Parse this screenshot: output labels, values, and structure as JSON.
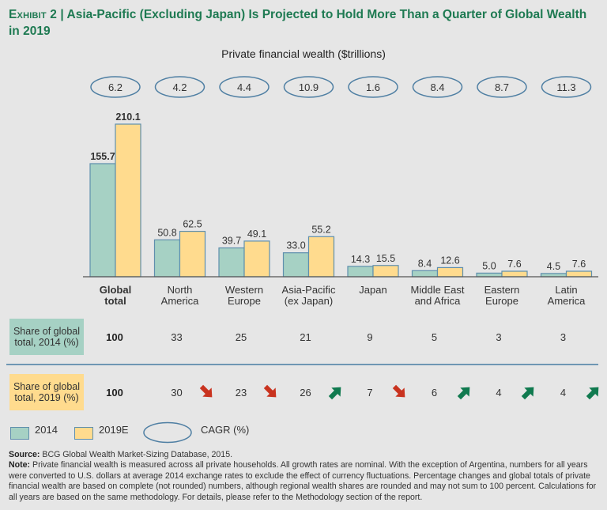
{
  "header": {
    "exhibit": "Exhibit 2",
    "separator": " | ",
    "title": "Asia-Pacific (Excluding Japan) Is Projected to Hold More Than a Quarter of Global Wealth in 2019"
  },
  "chart_data": {
    "type": "bar",
    "title": "Private financial wealth ($trillions)",
    "xlabel": "",
    "ylabel": "",
    "ylim": [
      0,
      210.1
    ],
    "grid": false,
    "categories": [
      "Global total",
      "North America",
      "Western Europe",
      "Asia-Pacific (ex Japan)",
      "Japan",
      "Middle East and Africa",
      "Eastern Europe",
      "Latin America"
    ],
    "category_lines": [
      [
        "Global",
        "total"
      ],
      [
        "North",
        "America"
      ],
      [
        "Western",
        "Europe"
      ],
      [
        "Asia-Pacific",
        "(ex Japan)"
      ],
      [
        "Japan"
      ],
      [
        "Middle East",
        "and Africa"
      ],
      [
        "Eastern",
        "Europe"
      ],
      [
        "Latin",
        "America"
      ]
    ],
    "series": [
      {
        "name": "2014",
        "color": "#a6d1c4",
        "values": [
          155.7,
          50.8,
          39.7,
          33.0,
          14.3,
          8.4,
          5.0,
          4.5
        ],
        "labels": [
          "155.7",
          "50.8",
          "39.7",
          "33.0",
          "14.3",
          "8.4",
          "5.0",
          "4.5"
        ]
      },
      {
        "name": "2019E",
        "color": "#ffdb8e",
        "values": [
          210.1,
          62.5,
          49.1,
          55.2,
          15.5,
          12.6,
          7.6,
          7.6
        ],
        "labels": [
          "210.1",
          "62.5",
          "49.1",
          "55.2",
          "15.5",
          "12.6",
          "7.6",
          "7.6"
        ]
      }
    ],
    "cagr": {
      "label": "CAGR (%)",
      "values": [
        "6.2",
        "4.2",
        "4.4",
        "10.9",
        "1.6",
        "8.4",
        "8.7",
        "11.3"
      ]
    },
    "share_2014": {
      "label": "Share of global total, 2014 (%)",
      "values": [
        "100",
        "33",
        "25",
        "21",
        "9",
        "5",
        "3",
        "3"
      ]
    },
    "share_2019": {
      "label": "Share of global total, 2019 (%)",
      "values": [
        "100",
        "30",
        "23",
        "26",
        "7",
        "6",
        "4",
        "4"
      ],
      "trend": [
        "none",
        "down",
        "down",
        "up",
        "down",
        "up",
        "up",
        "up"
      ]
    },
    "legend": [
      {
        "label": "2014",
        "color": "#a6d1c4"
      },
      {
        "label": "2019E",
        "color": "#ffdb8e"
      },
      {
        "label": "CAGR (%)",
        "shape": "ellipse"
      }
    ],
    "legend_position": "bottom-left"
  },
  "colors": {
    "title": "#1e7a52",
    "bar_outline": "#5f8fad",
    "ellipse": "#4f7fa3",
    "up_arrow": "#107a4f",
    "down_arrow": "#c9331f"
  },
  "rows": {
    "share_2014_label": "Share of global total, 2014 (%)",
    "share_2019_label": "Share of global total, 2019 (%)"
  },
  "legend": {
    "item_2014": "2014",
    "item_2019": "2019E",
    "item_cagr": "CAGR (%)"
  },
  "footer": {
    "source_label": "Source:",
    "source_text": " BCG Global Wealth Market-Sizing Database, 2015.",
    "note_label": "Note:",
    "note_text": " Private financial wealth is measured across all private households. All growth rates are nominal. With the exception of Argentina, numbers for all years were converted to U.S. dollars at average 2014 exchange rates to exclude the effect of currency fluctuations. Percentage changes and global totals of private financial wealth are based on complete (not rounded) numbers, although regional wealth shares are rounded and may not sum to 100 percent. Calculations for all years are based on the same methodology. For details, please refer to the Methodology section of the report."
  }
}
